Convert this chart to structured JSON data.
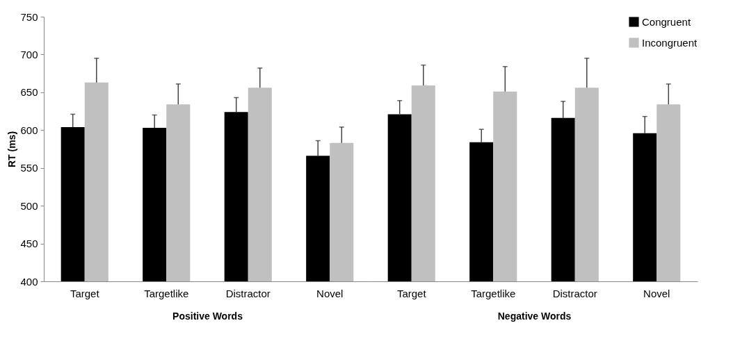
{
  "chart_data": [
    {
      "type": "bar",
      "xlabel": "Positive Words",
      "ylabel": "RT (ms)",
      "categories": [
        "Target",
        "Targetlike",
        "Distractor",
        "Novel"
      ],
      "ylim": [
        400,
        750
      ],
      "yticks": [
        400,
        450,
        500,
        550,
        600,
        650,
        700,
        750
      ],
      "grid": false,
      "legend": false,
      "series": [
        {
          "color": "#000000",
          "values": [
            604,
            603,
            624,
            566
          ],
          "errors": [
            [
              604,
              621
            ],
            [
              603,
              620
            ],
            [
              624,
              643
            ],
            [
              566,
              586
            ]
          ]
        },
        {
          "color": "#c0c0c0",
          "values": [
            663,
            634,
            656,
            583
          ],
          "errors": [
            [
              663,
              695
            ],
            [
              634,
              661
            ],
            [
              656,
              682
            ],
            [
              583,
              604
            ]
          ]
        }
      ]
    },
    {
      "type": "bar",
      "xlabel": "Negative Words",
      "categories": [
        "Target",
        "Targetlike",
        "Distractor",
        "Novel"
      ],
      "ylim": [
        400,
        750
      ],
      "yticks": [
        400,
        450,
        500,
        550,
        600,
        650,
        700,
        750
      ],
      "tick_labels": "x",
      "grid": false,
      "legend": "top right",
      "series": [
        {
          "name": "Congruent",
          "color": "#000000",
          "values": [
            621,
            584,
            616,
            596
          ],
          "errors": [
            [
              621,
              639
            ],
            [
              584,
              601
            ],
            [
              616,
              638
            ],
            [
              596,
              618
            ]
          ]
        },
        {
          "name": "Incongruent",
          "color": "#c0c0c0",
          "values": [
            659,
            651,
            656,
            634
          ],
          "errors": [
            [
              659,
              686
            ],
            [
              651,
              684
            ],
            [
              656,
              695
            ],
            [
              634,
              661
            ]
          ]
        }
      ]
    }
  ]
}
